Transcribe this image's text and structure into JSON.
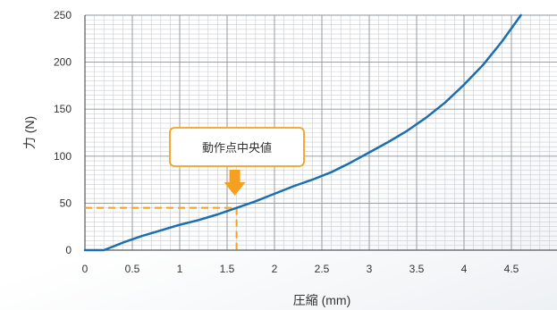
{
  "chart_data": {
    "type": "line",
    "xlabel": "圧縮 (mm)",
    "ylabel": "力 (N)",
    "xlim": [
      0,
      5
    ],
    "ylim": [
      0,
      250
    ],
    "x_ticks": [
      "0",
      "0.5",
      "1",
      "1.5",
      "2",
      "2.5",
      "3",
      "3.5",
      "4",
      "4.5"
    ],
    "y_ticks": [
      "0",
      "50",
      "100",
      "150",
      "200",
      "250"
    ],
    "grid": "on",
    "series": [
      {
        "points": [
          [
            0,
            0
          ],
          [
            0.2,
            0
          ],
          [
            0.4,
            8
          ],
          [
            0.6,
            15
          ],
          [
            0.8,
            21
          ],
          [
            1.0,
            27
          ],
          [
            1.2,
            32
          ],
          [
            1.4,
            38
          ],
          [
            1.6,
            45
          ],
          [
            1.8,
            52
          ],
          [
            2.0,
            60
          ],
          [
            2.2,
            68
          ],
          [
            2.4,
            75
          ],
          [
            2.6,
            83
          ],
          [
            2.8,
            93
          ],
          [
            3.0,
            104
          ],
          [
            3.2,
            115
          ],
          [
            3.4,
            127
          ],
          [
            3.6,
            141
          ],
          [
            3.8,
            157
          ],
          [
            4.0,
            176
          ],
          [
            4.2,
            197
          ],
          [
            4.4,
            222
          ],
          [
            4.6,
            250
          ]
        ],
        "color": "#1a6fb0"
      }
    ],
    "annotation": {
      "label": "動作点中央値",
      "x": 1.6,
      "y": 45,
      "color": "#f5a01e"
    }
  }
}
